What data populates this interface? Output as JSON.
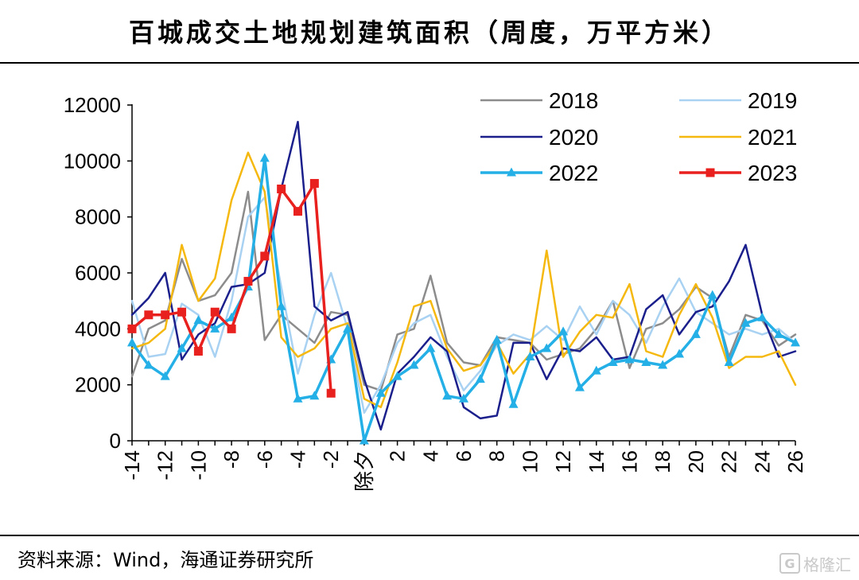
{
  "title": "百城成交土地规划建筑面积（周度，万平方米）",
  "source": "资料来源：Wind，海通证券研究所",
  "watermark": {
    "icon_letter": "G",
    "text": "格隆汇"
  },
  "chart_data": {
    "type": "line",
    "title": "百城成交土地规划建筑面积（周度，万平方米）",
    "xlabel": "",
    "ylabel": "",
    "ylim": [
      0,
      12000
    ],
    "yticks": [
      0,
      2000,
      4000,
      6000,
      8000,
      10000,
      12000
    ],
    "grid": false,
    "legend_position": "top-right",
    "x": [
      -14,
      -13,
      -12,
      -11,
      -10,
      -9,
      -8,
      -7,
      -6,
      -5,
      -4,
      -3,
      -2,
      -1,
      0,
      1,
      2,
      3,
      4,
      5,
      6,
      7,
      8,
      9,
      10,
      11,
      12,
      13,
      14,
      15,
      16,
      17,
      18,
      19,
      20,
      21,
      22,
      23,
      24,
      25,
      26
    ],
    "x_tick_labels": [
      "-14",
      "-12",
      "-10",
      "-8",
      "-6",
      "-4",
      "-2",
      "除夕",
      "2",
      "4",
      "6",
      "8",
      "10",
      "12",
      "14",
      "16",
      "18",
      "20",
      "22",
      "24",
      "26"
    ],
    "x_tick_positions": [
      -14,
      -12,
      -10,
      -8,
      -6,
      -4,
      -2,
      0,
      2,
      4,
      6,
      8,
      10,
      12,
      14,
      16,
      18,
      20,
      22,
      24,
      26
    ],
    "series": [
      {
        "name": "2018",
        "color": "#8c8c8c",
        "marker": "none",
        "width": 2.5,
        "x": [
          -14,
          -13,
          -12,
          -11,
          -10,
          -9,
          -8,
          -7,
          -6,
          -5,
          -4,
          -3,
          -2,
          -1,
          0,
          1,
          2,
          3,
          4,
          5,
          6,
          7,
          8,
          9,
          10,
          11,
          12,
          13,
          14,
          15,
          16,
          17,
          18,
          19,
          20,
          21,
          22,
          23,
          24,
          25,
          26
        ],
        "values": [
          2300,
          4000,
          4300,
          6500,
          5000,
          5200,
          6000,
          8900,
          3600,
          4500,
          4000,
          3500,
          4600,
          4500,
          2000,
          1800,
          3800,
          4000,
          5900,
          3500,
          2800,
          2700,
          3700,
          3600,
          3500,
          2900,
          3100,
          3300,
          4000,
          5000,
          2600,
          4000,
          4200,
          4700,
          5500,
          5100,
          3000,
          4500,
          4300,
          3400,
          3800
        ]
      },
      {
        "name": "2019",
        "color": "#a9d2f2",
        "marker": "none",
        "width": 2.5,
        "x": [
          -14,
          -13,
          -12,
          -11,
          -10,
          -9,
          -8,
          -7,
          -6,
          -5,
          -4,
          -3,
          -2,
          -1,
          0,
          1,
          2,
          3,
          4,
          5,
          6,
          7,
          8,
          9,
          10,
          11,
          12,
          13,
          14,
          15,
          16,
          17,
          18,
          19,
          20,
          21,
          22,
          23,
          24,
          25,
          26
        ],
        "values": [
          5000,
          3000,
          3100,
          4900,
          4500,
          3000,
          5000,
          8000,
          8700,
          5500,
          2400,
          4500,
          6000,
          4000,
          1000,
          2000,
          3500,
          4200,
          4500,
          3000,
          1800,
          2500,
          3400,
          3800,
          3600,
          4100,
          3600,
          4800,
          3800,
          5000,
          4500,
          3500,
          4800,
          5800,
          4600,
          4200,
          3800,
          4000,
          3800,
          4000,
          3500
        ]
      },
      {
        "name": "2020",
        "color": "#1a1f8c",
        "marker": "none",
        "width": 2.5,
        "x": [
          -14,
          -13,
          -12,
          -11,
          -10,
          -9,
          -8,
          -7,
          -6,
          -5,
          -4,
          -3,
          -2,
          -1,
          0,
          1,
          2,
          3,
          4,
          5,
          6,
          7,
          8,
          9,
          10,
          11,
          12,
          13,
          14,
          15,
          16,
          17,
          18,
          19,
          20,
          21,
          22,
          23,
          24,
          25,
          26
        ],
        "values": [
          4500,
          5100,
          6000,
          2900,
          3800,
          4200,
          5500,
          5600,
          6000,
          9000,
          11400,
          4800,
          4300,
          4600,
          2200,
          400,
          2400,
          3000,
          3700,
          3200,
          1200,
          800,
          900,
          3500,
          3500,
          2200,
          3300,
          3200,
          3700,
          2900,
          3000,
          4700,
          5200,
          3800,
          4600,
          4800,
          5700,
          7000,
          4500,
          3000,
          3200
        ]
      },
      {
        "name": "2021",
        "color": "#f5b80f",
        "marker": "none",
        "width": 2.5,
        "x": [
          -14,
          -13,
          -12,
          -11,
          -10,
          -9,
          -8,
          -7,
          -6,
          -5,
          -4,
          -3,
          -2,
          -1,
          0,
          1,
          2,
          3,
          4,
          5,
          6,
          7,
          8,
          9,
          10,
          11,
          12,
          13,
          14,
          15,
          16,
          17,
          18,
          19,
          20,
          21,
          22,
          23,
          24,
          25,
          26
        ],
        "values": [
          3300,
          3500,
          4000,
          7000,
          5000,
          5800,
          8600,
          10300,
          8900,
          3700,
          3000,
          3300,
          4000,
          4200,
          1500,
          1200,
          2800,
          4800,
          5000,
          3300,
          2500,
          2700,
          3500,
          2400,
          3100,
          6800,
          3000,
          3900,
          4500,
          4400,
          5600,
          3200,
          3000,
          4500,
          5600,
          4400,
          2600,
          3000,
          3000,
          3200,
          2000
        ]
      },
      {
        "name": "2022",
        "color": "#24b0e6",
        "marker": "triangle",
        "width": 3.5,
        "x": [
          -14,
          -13,
          -12,
          -11,
          -10,
          -9,
          -8,
          -7,
          -6,
          -5,
          -4,
          -3,
          -2,
          -1,
          0,
          1,
          2,
          3,
          4,
          5,
          6,
          7,
          8,
          9,
          10,
          11,
          12,
          13,
          14,
          15,
          16,
          17,
          18,
          19,
          20,
          21,
          22,
          23,
          24,
          25,
          26
        ],
        "values": [
          3500,
          2700,
          2300,
          3300,
          4300,
          4000,
          4400,
          5500,
          10100,
          4800,
          1500,
          1600,
          2900,
          4000,
          0,
          1700,
          2300,
          2700,
          3300,
          1600,
          1500,
          2200,
          3600,
          1300,
          3000,
          3300,
          3900,
          1900,
          2500,
          2800,
          2900,
          2800,
          2700,
          3100,
          3800,
          5200,
          2800,
          4200,
          4400,
          3800,
          3500
        ]
      },
      {
        "name": "2023",
        "color": "#e8201e",
        "marker": "square",
        "width": 3.5,
        "x": [
          -14,
          -13,
          -12,
          -11,
          -10,
          -9,
          -8,
          -7,
          -6,
          -5,
          -4,
          -3,
          -2
        ],
        "values": [
          4000,
          4500,
          4500,
          4600,
          3200,
          4600,
          4000,
          5700,
          6600,
          9000,
          8200,
          9200,
          1700
        ]
      }
    ]
  }
}
